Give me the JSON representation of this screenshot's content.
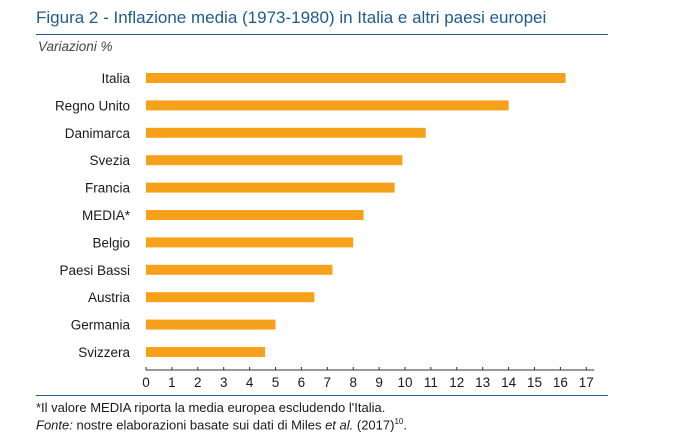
{
  "header": {
    "title": "Figura 2 - Inflazione media (1973-1980) in Italia e altri paesi europei",
    "units": "Variazioni %"
  },
  "chart_data": {
    "type": "bar",
    "orientation": "horizontal",
    "title": "Figura 2 - Inflazione media (1973-1980) in Italia e altri paesi europei",
    "ylabel": "Variazioni %",
    "categories": [
      "Italia",
      "Regno Unito",
      "Danimarca",
      "Svezia",
      "Francia",
      "MEDIA*",
      "Belgio",
      "Paesi Bassi",
      "Austria",
      "Germania",
      "Svizzera"
    ],
    "values": [
      16.2,
      14.0,
      10.8,
      9.9,
      9.6,
      8.4,
      8.0,
      7.2,
      6.5,
      5.0,
      4.6
    ],
    "xlim": [
      0,
      17
    ],
    "xticks": [
      "0",
      "1",
      "2",
      "3",
      "4",
      "5",
      "6",
      "7",
      "8",
      "9",
      "10",
      "11",
      "12",
      "13",
      "14",
      "15",
      "16",
      "17"
    ],
    "bar_color": "#f7a11a",
    "grid": false
  },
  "colors": {
    "accent": "#1d5c8c",
    "bar": "#f7a11a"
  },
  "notes": {
    "footnote": "*Il valore MEDIA riporta la media europea escludendo l'Italia.",
    "source_label": "Fonte:",
    "source_text_1": " nostre elaborazioni basate sui dati di Miles ",
    "source_italic": "et al.",
    "source_text_2": " (2017)",
    "source_ref": "10",
    "source_end": "."
  }
}
